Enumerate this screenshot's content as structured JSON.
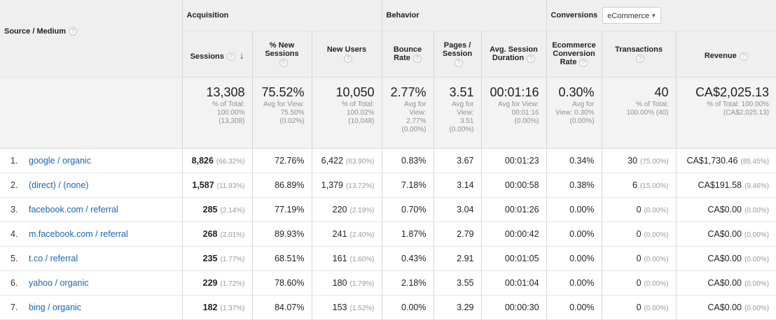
{
  "header": {
    "source_medium": "Source / Medium",
    "acquisition": "Acquisition",
    "behavior": "Behavior",
    "conversions": "Conversions",
    "conversion_type": "eCommerce",
    "sessions": "Sessions",
    "new_sessions": [
      "% New",
      "Sessions"
    ],
    "new_users": "New Users",
    "bounce_rate": [
      "Bounce",
      "Rate"
    ],
    "pages_session": [
      "Pages /",
      "Session"
    ],
    "avg_session_duration": [
      "Avg. Session",
      "Duration"
    ],
    "ecommerce_conversion_rate": [
      "Ecommerce",
      "Conversion",
      "Rate"
    ],
    "transactions": "Transactions",
    "revenue": "Revenue",
    "help_glyph": "?",
    "sort_arrow": "↓"
  },
  "totals": {
    "sessions": {
      "value": "13,308",
      "sub": [
        "% of Total:",
        "100.00%",
        "(13,308)"
      ]
    },
    "new_sessions": {
      "value": "75.52%",
      "sub": [
        "Avg for View:",
        "75.50%",
        "(0.02%)"
      ]
    },
    "new_users": {
      "value": "10,050",
      "sub": [
        "% of Total:",
        "100.02%",
        "(10,048)"
      ]
    },
    "bounce_rate": {
      "value": "2.77%",
      "sub": [
        "Avg for",
        "View:",
        "2.77%",
        "(0.00%)"
      ]
    },
    "pages_session": {
      "value": "3.51",
      "sub": [
        "Avg for",
        "View:",
        "3.51",
        "(0.00%)"
      ]
    },
    "avg_session_duration": {
      "value": "00:01:16",
      "sub": [
        "Avg for View:",
        "00:01:16",
        "(0.00%)"
      ]
    },
    "conversion_rate": {
      "value": "0.30%",
      "sub": [
        "Avg for",
        "View: 0.30%",
        "(0.00%)"
      ]
    },
    "transactions": {
      "value": "40",
      "sub": [
        "% of Total:",
        "100.00% (40)"
      ]
    },
    "revenue": {
      "value": "CA$2,025.13",
      "sub": [
        "% of Total: 100.00%",
        "(CA$2,025.13)"
      ]
    }
  },
  "rows": [
    {
      "index": "1.",
      "source": "google / organic",
      "sessions": "8,826",
      "sessions_pct": "(66.32%)",
      "new_sessions": "72.76%",
      "new_users": "6,422",
      "new_users_pct": "(63.90%)",
      "bounce_rate": "0.83%",
      "pages_session": "3.67",
      "duration": "00:01:23",
      "conversion_rate": "0.34%",
      "transactions": "30",
      "transactions_pct": "(75.00%)",
      "revenue": "CA$1,730.46",
      "revenue_pct": "(85.45%)"
    },
    {
      "index": "2.",
      "source": "(direct) / (none)",
      "sessions": "1,587",
      "sessions_pct": "(11.93%)",
      "new_sessions": "86.89%",
      "new_users": "1,379",
      "new_users_pct": "(13.72%)",
      "bounce_rate": "7.18%",
      "pages_session": "3.14",
      "duration": "00:00:58",
      "conversion_rate": "0.38%",
      "transactions": "6",
      "transactions_pct": "(15.00%)",
      "revenue": "CA$191.58",
      "revenue_pct": "(9.46%)"
    },
    {
      "index": "3.",
      "source": "facebook.com / referral",
      "sessions": "285",
      "sessions_pct": "(2.14%)",
      "new_sessions": "77.19%",
      "new_users": "220",
      "new_users_pct": "(2.19%)",
      "bounce_rate": "0.70%",
      "pages_session": "3.04",
      "duration": "00:01:26",
      "conversion_rate": "0.00%",
      "transactions": "0",
      "transactions_pct": "(0.00%)",
      "revenue": "CA$0.00",
      "revenue_pct": "(0.00%)"
    },
    {
      "index": "4.",
      "source": "m.facebook.com / referral",
      "sessions": "268",
      "sessions_pct": "(2.01%)",
      "new_sessions": "89.93%",
      "new_users": "241",
      "new_users_pct": "(2.40%)",
      "bounce_rate": "1.87%",
      "pages_session": "2.79",
      "duration": "00:00:42",
      "conversion_rate": "0.00%",
      "transactions": "0",
      "transactions_pct": "(0.00%)",
      "revenue": "CA$0.00",
      "revenue_pct": "(0.00%)"
    },
    {
      "index": "5.",
      "source": "t.co / referral",
      "sessions": "235",
      "sessions_pct": "(1.77%)",
      "new_sessions": "68.51%",
      "new_users": "161",
      "new_users_pct": "(1.60%)",
      "bounce_rate": "0.43%",
      "pages_session": "2.91",
      "duration": "00:01:05",
      "conversion_rate": "0.00%",
      "transactions": "0",
      "transactions_pct": "(0.00%)",
      "revenue": "CA$0.00",
      "revenue_pct": "(0.00%)"
    },
    {
      "index": "6.",
      "source": "yahoo / organic",
      "sessions": "229",
      "sessions_pct": "(1.72%)",
      "new_sessions": "78.60%",
      "new_users": "180",
      "new_users_pct": "(1.79%)",
      "bounce_rate": "2.18%",
      "pages_session": "3.55",
      "duration": "00:01:04",
      "conversion_rate": "0.00%",
      "transactions": "0",
      "transactions_pct": "(0.00%)",
      "revenue": "CA$0.00",
      "revenue_pct": "(0.00%)"
    },
    {
      "index": "7.",
      "source": "bing / organic",
      "sessions": "182",
      "sessions_pct": "(1.37%)",
      "new_sessions": "84.07%",
      "new_users": "153",
      "new_users_pct": "(1.52%)",
      "bounce_rate": "0.00%",
      "pages_session": "3.29",
      "duration": "00:00:30",
      "conversion_rate": "0.00%",
      "transactions": "0",
      "transactions_pct": "(0.00%)",
      "revenue": "CA$0.00",
      "revenue_pct": "(0.00%)"
    }
  ]
}
